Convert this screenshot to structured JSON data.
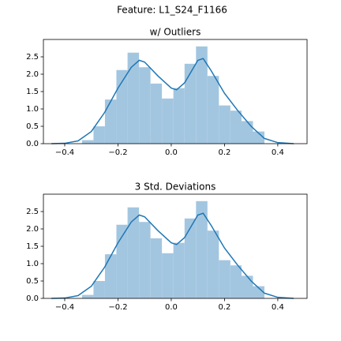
{
  "title": "Feature: L1_S24_F1166",
  "chart_data": [
    {
      "type": "histogram",
      "title": "w/ Outliers",
      "bins": [
        -0.335,
        -0.292,
        -0.249,
        -0.206,
        -0.164,
        -0.121,
        -0.078,
        -0.035,
        0.008,
        0.05,
        0.093,
        0.136,
        0.179,
        0.222,
        0.264,
        0.307,
        0.35
      ],
      "counts": [
        0.1,
        0.5,
        1.27,
        2.12,
        2.62,
        2.2,
        1.73,
        1.3,
        1.6,
        2.3,
        2.8,
        1.95,
        1.1,
        0.95,
        0.65,
        0.35
      ],
      "color": "#a3c6e0",
      "kde": {
        "color": "#1f77b4",
        "x": [
          -0.45,
          -0.4,
          -0.35,
          -0.3,
          -0.25,
          -0.2,
          -0.15,
          -0.12,
          -0.1,
          -0.05,
          0,
          0.02,
          0.05,
          0.1,
          0.12,
          0.15,
          0.2,
          0.25,
          0.3,
          0.35,
          0.4,
          0.46
        ],
        "values": [
          0,
          0.01,
          0.08,
          0.35,
          0.9,
          1.6,
          2.2,
          2.4,
          2.35,
          1.95,
          1.6,
          1.55,
          1.75,
          2.4,
          2.45,
          2.1,
          1.45,
          0.95,
          0.5,
          0.15,
          0.03,
          0
        ]
      },
      "xlim": [
        -0.48,
        0.51
      ],
      "ylim": [
        0,
        3.0
      ],
      "xticks": [
        {
          "value": -0.4,
          "label": "−0.4"
        },
        {
          "value": -0.2,
          "label": "−0.2"
        },
        {
          "value": 0,
          "label": "0.0"
        },
        {
          "value": 0.2,
          "label": "0.2"
        },
        {
          "value": 0.4,
          "label": "0.4"
        }
      ],
      "yticks": [
        {
          "value": 0,
          "label": "0.0"
        },
        0.5,
        {
          "value": 1,
          "label": "1.0"
        },
        1.5,
        {
          "value": 2,
          "label": "2.0"
        },
        2.5
      ]
    },
    {
      "type": "histogram",
      "title": "3 Std. Deviations",
      "bins": [
        -0.335,
        -0.292,
        -0.249,
        -0.206,
        -0.164,
        -0.121,
        -0.078,
        -0.035,
        0.008,
        0.05,
        0.093,
        0.136,
        0.179,
        0.222,
        0.264,
        0.307,
        0.35
      ],
      "counts": [
        0.1,
        0.5,
        1.27,
        2.12,
        2.62,
        2.2,
        1.73,
        1.3,
        1.6,
        2.3,
        2.8,
        1.95,
        1.1,
        0.95,
        0.65,
        0.35
      ],
      "color": "#a3c6e0",
      "kde": {
        "color": "#1f77b4",
        "x": [
          -0.45,
          -0.4,
          -0.35,
          -0.3,
          -0.25,
          -0.2,
          -0.15,
          -0.12,
          -0.1,
          -0.05,
          0,
          0.02,
          0.05,
          0.1,
          0.12,
          0.15,
          0.2,
          0.25,
          0.3,
          0.35,
          0.4,
          0.46
        ],
        "values": [
          0,
          0.01,
          0.08,
          0.35,
          0.9,
          1.6,
          2.2,
          2.4,
          2.35,
          1.95,
          1.6,
          1.55,
          1.75,
          2.4,
          2.45,
          2.1,
          1.45,
          0.95,
          0.5,
          0.15,
          0.03,
          0
        ]
      },
      "xlim": [
        -0.48,
        0.51
      ],
      "ylim": [
        0,
        3.0
      ],
      "xticks": [
        {
          "value": -0.4,
          "label": "−0.4"
        },
        {
          "value": -0.2,
          "label": "−0.2"
        },
        {
          "value": 0,
          "label": "0.0"
        },
        {
          "value": 0.2,
          "label": "0.2"
        },
        {
          "value": 0.4,
          "label": "0.4"
        }
      ],
      "yticks": [
        {
          "value": 0,
          "label": "0.0"
        },
        0.5,
        {
          "value": 1,
          "label": "1.0"
        },
        1.5,
        {
          "value": 2,
          "label": "2.0"
        },
        2.5
      ]
    }
  ]
}
